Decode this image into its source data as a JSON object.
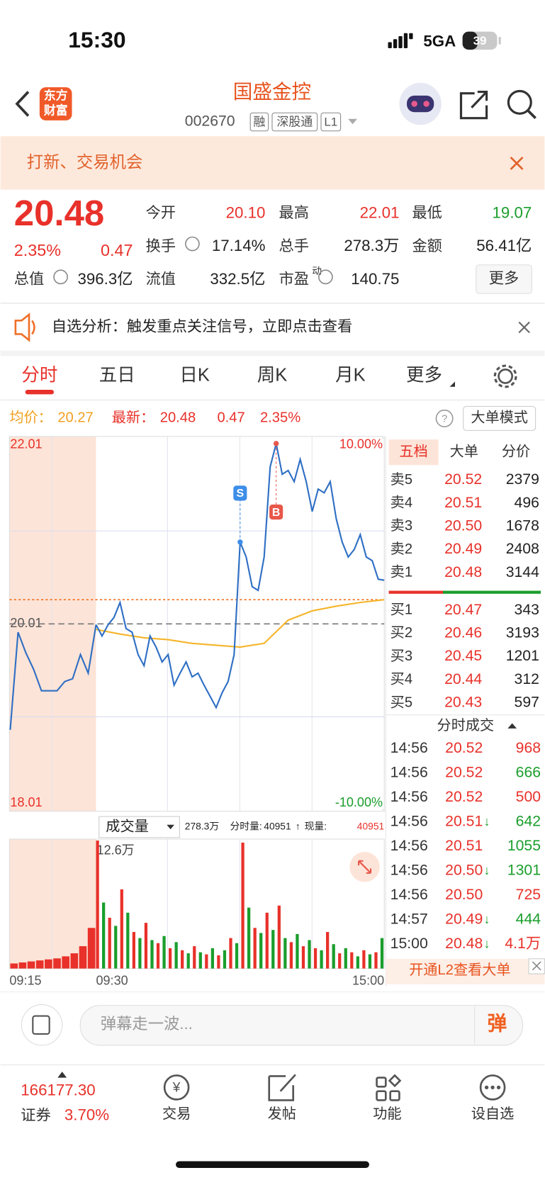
{
  "status": {
    "time": "15:30",
    "network": "5GA",
    "battery": "39"
  },
  "header": {
    "logo": [
      "东方",
      "财富"
    ],
    "title": "国盛金控",
    "code": "002670",
    "tags": [
      "融",
      "深股通",
      "L1"
    ]
  },
  "banner": {
    "text": "打新、交易机会"
  },
  "quote": {
    "price": "20.48",
    "change_pct": "2.35%",
    "change": "0.47",
    "more": "更多",
    "fields": [
      {
        "label": "今开",
        "value": "20.10",
        "color": "#e8312a"
      },
      {
        "label": "最高",
        "value": "22.01",
        "color": "#e8312a"
      },
      {
        "label": "最低",
        "value": "19.07",
        "color": "#1a9e2c"
      },
      {
        "label": "换手",
        "value": "17.14%",
        "color": "#222",
        "info": true
      },
      {
        "label": "总手",
        "value": "278.3万",
        "color": "#222"
      },
      {
        "label": "金额",
        "value": "56.41亿",
        "color": "#222"
      },
      {
        "label": "总值",
        "value": "396.3亿",
        "color": "#222",
        "info": true
      },
      {
        "label": "流值",
        "value": "332.5亿",
        "color": "#222"
      },
      {
        "label": "市盈",
        "sup": "动",
        "value": "140.75",
        "color": "#222",
        "info": true
      }
    ]
  },
  "notice": {
    "text": "自选分析：触发重点关注信号，立即点击查看"
  },
  "tabs": [
    "分时",
    "五日",
    "日K",
    "周K",
    "月K",
    "更多"
  ],
  "chart_data": [
    {
      "type": "line",
      "avg_label": "均价：",
      "avg_price": 20.27,
      "latest_label": "最新：",
      "latest": 20.48,
      "change": 0.47,
      "change_pct": "2.35%",
      "mode_button": "大单模式",
      "ylim": [
        18.01,
        22.01
      ],
      "yticks": [
        18.01,
        20.01,
        22.01
      ],
      "y2lim": [
        -10,
        10
      ],
      "y2ticks": [
        {
          "value": -10,
          "label": "-10.00%"
        },
        {
          "value": 10,
          "label": "10.00%"
        }
      ],
      "xlabels": [
        "09:15",
        "09:30",
        "15:00"
      ],
      "auction_values": [
        18.87,
        19.92,
        19.7,
        19.52,
        19.29,
        19.29,
        19.29,
        19.39,
        19.42,
        19.68,
        19.48,
        20.0
      ],
      "series": [
        {
          "color": "#2f6fc4",
          "values": [
            20.0,
            19.88,
            20.0,
            20.08,
            20.24,
            19.96,
            19.92,
            19.68,
            19.56,
            19.88,
            19.76,
            19.6,
            19.68,
            19.35,
            19.48,
            19.6,
            19.44,
            19.48,
            19.35,
            19.23,
            19.11,
            19.27,
            19.39,
            19.68,
            20.89,
            20.73,
            20.41,
            20.37,
            20.73,
            21.7,
            21.95,
            21.62,
            21.66,
            21.54,
            21.78,
            21.54,
            21.22,
            21.46,
            21.42,
            21.54,
            21.14,
            20.89,
            20.73,
            20.81,
            20.97,
            20.73,
            20.69,
            20.49,
            20.48
          ]
        },
        {
          "color": "#f5b52a",
          "values": [
            19.95,
            19.9,
            19.86,
            19.84,
            19.8,
            19.78,
            19.76,
            19.8,
            20.05,
            20.15,
            20.2,
            20.24,
            20.27
          ]
        }
      ],
      "markers": [
        {
          "label": "S",
          "color": "#3d8ee8",
          "index": 24
        },
        {
          "label": "B",
          "color": "#e8574a",
          "index": 30
        }
      ]
    },
    {
      "type": "bar",
      "label": "成交量",
      "total": "278.3万",
      "period_label": "分时量:",
      "period": 40951,
      "arrow": "↑",
      "current_label": "现量:",
      "current": 40951,
      "ylim": [
        0,
        12.6
      ],
      "yticks": [
        {
          "value": 12.6,
          "label": "12.6万"
        }
      ],
      "colors": [
        "#e8312a",
        "#1a9e2c"
      ],
      "auction_values": [
        0.5,
        0.6,
        0.7,
        0.8,
        0.9,
        1.0,
        1.2,
        1.5,
        2.2,
        4.0
      ],
      "values": [
        12.6,
        6.5,
        5.0,
        4.2,
        7.8,
        5.5,
        3.6,
        3.0,
        4.5,
        2.8,
        2.5,
        3.2,
        2.0,
        2.6,
        1.8,
        1.5,
        2.2,
        1.6,
        1.4,
        2.0,
        1.3,
        1.8,
        3.0,
        2.5,
        12.4,
        6.0,
        4.0,
        3.5,
        5.5,
        3.8,
        6.2,
        3.0,
        2.6,
        3.4,
        2.2,
        2.8,
        2.0,
        1.8,
        3.6,
        2.4,
        1.5,
        2.0,
        1.6,
        1.2,
        1.8,
        1.4,
        1.6,
        3.0
      ]
    }
  ],
  "order_book": {
    "tabs": [
      "五档",
      "大单",
      "分价"
    ],
    "asks": [
      {
        "label": "卖5",
        "price": "20.52",
        "volume": 2379
      },
      {
        "label": "卖4",
        "price": "20.51",
        "volume": 496
      },
      {
        "label": "卖3",
        "price": "20.50",
        "volume": 1678
      },
      {
        "label": "卖2",
        "price": "20.49",
        "volume": 2408
      },
      {
        "label": "卖1",
        "price": "20.48",
        "volume": 3144
      }
    ],
    "bids": [
      {
        "label": "买1",
        "price": "20.47",
        "volume": 343
      },
      {
        "label": "买2",
        "price": "20.46",
        "volume": 3193
      },
      {
        "label": "买3",
        "price": "20.45",
        "volume": 1201
      },
      {
        "label": "买4",
        "price": "20.44",
        "volume": 312
      },
      {
        "label": "买5",
        "price": "20.43",
        "volume": 597
      }
    ]
  },
  "trades": {
    "title": "分时成交",
    "rows": [
      {
        "time": "14:56",
        "price": "20.52",
        "volume": "968",
        "color": "#e8312a"
      },
      {
        "time": "14:56",
        "price": "20.52",
        "volume": "666",
        "color": "#1a9e2c"
      },
      {
        "time": "14:56",
        "price": "20.52",
        "volume": "500",
        "color": "#e8312a"
      },
      {
        "time": "14:56",
        "price": "20.51",
        "arrow": "↓",
        "volume": "642",
        "color": "#1a9e2c"
      },
      {
        "time": "14:56",
        "price": "20.51",
        "volume": "1055",
        "color": "#1a9e2c"
      },
      {
        "time": "14:56",
        "price": "20.50",
        "arrow": "↓",
        "volume": "1301",
        "color": "#1a9e2c"
      },
      {
        "time": "14:56",
        "price": "20.50",
        "volume": "725",
        "color": "#e8312a"
      },
      {
        "time": "14:57",
        "price": "20.49",
        "arrow": "↓",
        "volume": "444",
        "color": "#1a9e2c"
      },
      {
        "time": "15:00",
        "price": "20.48",
        "arrow": "↓",
        "volume": "4.1万",
        "color": "#e8312a"
      }
    ],
    "l2": "开通L2查看大单"
  },
  "comment": {
    "placeholder": "弹幕走一波...",
    "button": "弹"
  },
  "nav": {
    "index_value": "166177.30",
    "index_name": "证券",
    "index_pct": "3.70%",
    "items": [
      "交易",
      "发帖",
      "功能",
      "设自选"
    ]
  }
}
